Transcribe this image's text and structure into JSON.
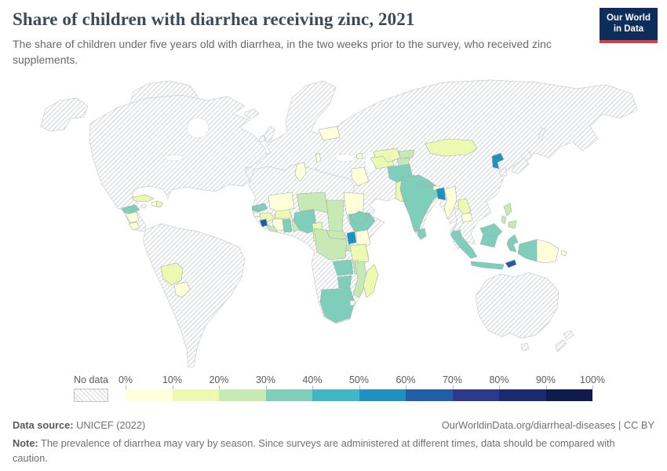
{
  "header": {
    "title": "Share of children with diarrhea receiving zinc, 2021",
    "subtitle": "The share of children under five years old with diarrhea, in the two weeks prior to the survey, who received zinc supplements.",
    "logo": {
      "line1": "Our World",
      "line2": "in Data"
    }
  },
  "legend": {
    "no_data_label": "No data",
    "tick_labels": [
      "0%",
      "10%",
      "20%",
      "30%",
      "40%",
      "50%",
      "60%",
      "70%",
      "80%",
      "90%",
      "100%"
    ],
    "bins": [
      {
        "range": "0-10%",
        "color": "#ffffd9"
      },
      {
        "range": "10-20%",
        "color": "#edf8b1"
      },
      {
        "range": "20-30%",
        "color": "#c7e9b4"
      },
      {
        "range": "30-40%",
        "color": "#7fcdbb"
      },
      {
        "range": "40-50%",
        "color": "#41b6c4"
      },
      {
        "range": "50-60%",
        "color": "#1d91c0"
      },
      {
        "range": "60-70%",
        "color": "#225ea8"
      },
      {
        "range": "70-80%",
        "color": "#2b3a8c"
      },
      {
        "range": "80-90%",
        "color": "#1c2a70"
      },
      {
        "range": "90-100%",
        "color": "#101b4d"
      }
    ]
  },
  "chart_data": {
    "type": "choropleth",
    "title": "Share of children with diarrhea receiving zinc",
    "year": "2021",
    "unit": "% of children under five with diarrhea who received zinc supplements",
    "no_data": "Hatched regions (Americas except listed, Europe except listed, Russia, China, Middle East, Australia and others)",
    "countries": [
      {
        "name": "Haiti",
        "bin": 0,
        "range": "0-10%"
      },
      {
        "name": "Nicaragua",
        "bin": 0,
        "range": "0-10%"
      },
      {
        "name": "Costa Rica",
        "bin": 0,
        "range": "0-10%"
      },
      {
        "name": "Paraguay",
        "bin": 0,
        "range": "0-10%"
      },
      {
        "name": "Belarus",
        "bin": 0,
        "range": "0-10%"
      },
      {
        "name": "Albania",
        "bin": 0,
        "range": "0-10%"
      },
      {
        "name": "Tunisia",
        "bin": 0,
        "range": "0-10%"
      },
      {
        "name": "Mali",
        "bin": 0,
        "range": "0-10%"
      },
      {
        "name": "Cote d'Ivoire",
        "bin": 0,
        "range": "0-10%"
      },
      {
        "name": "Guinea-Bissau",
        "bin": 0,
        "range": "0-10%"
      },
      {
        "name": "Sudan",
        "bin": 0,
        "range": "0-10%"
      },
      {
        "name": "Kenya",
        "bin": 0,
        "range": "0-10%"
      },
      {
        "name": "Eswatini",
        "bin": 0,
        "range": "0-10%"
      },
      {
        "name": "Iraq",
        "bin": 0,
        "range": "0-10%"
      },
      {
        "name": "Armenia",
        "bin": 0,
        "range": "0-10%"
      },
      {
        "name": "Myanmar",
        "bin": 0,
        "range": "0-10%"
      },
      {
        "name": "Cambodia",
        "bin": 0,
        "range": "0-10%"
      },
      {
        "name": "Bhutan",
        "bin": 0,
        "range": "0-10%"
      },
      {
        "name": "Papua New Guinea",
        "bin": 0,
        "range": "0-10%"
      },
      {
        "name": "Solomon Islands",
        "bin": 0,
        "range": "0-10%"
      },
      {
        "name": "Cuba",
        "bin": 1,
        "range": "10-20%"
      },
      {
        "name": "Dominican Republic",
        "bin": 1,
        "range": "10-20%"
      },
      {
        "name": "Bolivia",
        "bin": 1,
        "range": "10-20%"
      },
      {
        "name": "Mongolia",
        "bin": 1,
        "range": "10-20%"
      },
      {
        "name": "Uzbekistan",
        "bin": 1,
        "range": "10-20%"
      },
      {
        "name": "Turkmenistan",
        "bin": 1,
        "range": "10-20%"
      },
      {
        "name": "Pakistan",
        "bin": 1,
        "range": "10-20%"
      },
      {
        "name": "Laos",
        "bin": 1,
        "range": "10-20%"
      },
      {
        "name": "Tanzania",
        "bin": 1,
        "range": "10-20%"
      },
      {
        "name": "Madagascar",
        "bin": 1,
        "range": "10-20%"
      },
      {
        "name": "Burkina Faso",
        "bin": 1,
        "range": "10-20%"
      },
      {
        "name": "Guinea",
        "bin": 1,
        "range": "10-20%"
      },
      {
        "name": "Cameroon",
        "bin": 1,
        "range": "10-20%"
      },
      {
        "name": "Niger",
        "bin": 2,
        "range": "20-30%"
      },
      {
        "name": "Chad",
        "bin": 2,
        "range": "20-30%"
      },
      {
        "name": "Democratic Republic of Congo",
        "bin": 2,
        "range": "20-30%"
      },
      {
        "name": "Central African Republic",
        "bin": 2,
        "range": "20-30%"
      },
      {
        "name": "Benin",
        "bin": 2,
        "range": "20-30%"
      },
      {
        "name": "Liberia",
        "bin": 2,
        "range": "20-30%"
      },
      {
        "name": "Mozambique",
        "bin": 2,
        "range": "20-30%"
      },
      {
        "name": "Malawi",
        "bin": 2,
        "range": "20-30%"
      },
      {
        "name": "Rwanda",
        "bin": 2,
        "range": "20-30%"
      },
      {
        "name": "Kyrgyzstan",
        "bin": 2,
        "range": "20-30%"
      },
      {
        "name": "Tajikistan",
        "bin": 2,
        "range": "20-30%"
      },
      {
        "name": "Philippines",
        "bin": 2,
        "range": "20-30%"
      },
      {
        "name": "Senegal",
        "bin": 3,
        "range": "30-40%"
      },
      {
        "name": "Gambia",
        "bin": 3,
        "range": "30-40%"
      },
      {
        "name": "Nigeria",
        "bin": 3,
        "range": "30-40%"
      },
      {
        "name": "Ghana",
        "bin": 3,
        "range": "30-40%"
      },
      {
        "name": "Ethiopia",
        "bin": 3,
        "range": "30-40%"
      },
      {
        "name": "Zambia",
        "bin": 3,
        "range": "30-40%"
      },
      {
        "name": "Zimbabwe",
        "bin": 3,
        "range": "30-40%"
      },
      {
        "name": "South Africa",
        "bin": 3,
        "range": "30-40%"
      },
      {
        "name": "Honduras",
        "bin": 3,
        "range": "30-40%"
      },
      {
        "name": "India",
        "bin": 3,
        "range": "30-40%"
      },
      {
        "name": "Nepal",
        "bin": 3,
        "range": "30-40%"
      },
      {
        "name": "Afghanistan",
        "bin": 3,
        "range": "30-40%"
      },
      {
        "name": "Yemen",
        "bin": 3,
        "range": "30-40%"
      },
      {
        "name": "Sri Lanka",
        "bin": 3,
        "range": "30-40%"
      },
      {
        "name": "Indonesia",
        "bin": 3,
        "range": "30-40%"
      },
      {
        "name": "Malaysia",
        "bin": 3,
        "range": "30-40%"
      },
      {
        "name": "Bangladesh",
        "bin": 5,
        "range": "50-60%"
      },
      {
        "name": "Uganda",
        "bin": 5,
        "range": "50-60%"
      },
      {
        "name": "North Korea",
        "bin": 5,
        "range": "50-60%"
      },
      {
        "name": "Sierra Leone",
        "bin": 6,
        "range": "60-70%"
      },
      {
        "name": "Timor-Leste",
        "bin": 6,
        "range": "60-70%"
      }
    ]
  },
  "footer": {
    "source_label": "Data source:",
    "source_value": " UNICEF (2022)",
    "link": "OurWorldinData.org/diarrheal-diseases | CC BY",
    "note_label": "Note:",
    "note_value": " The prevalence of diarrhea may vary by season. Since surveys are administered at different times, data should be compared with caution."
  }
}
